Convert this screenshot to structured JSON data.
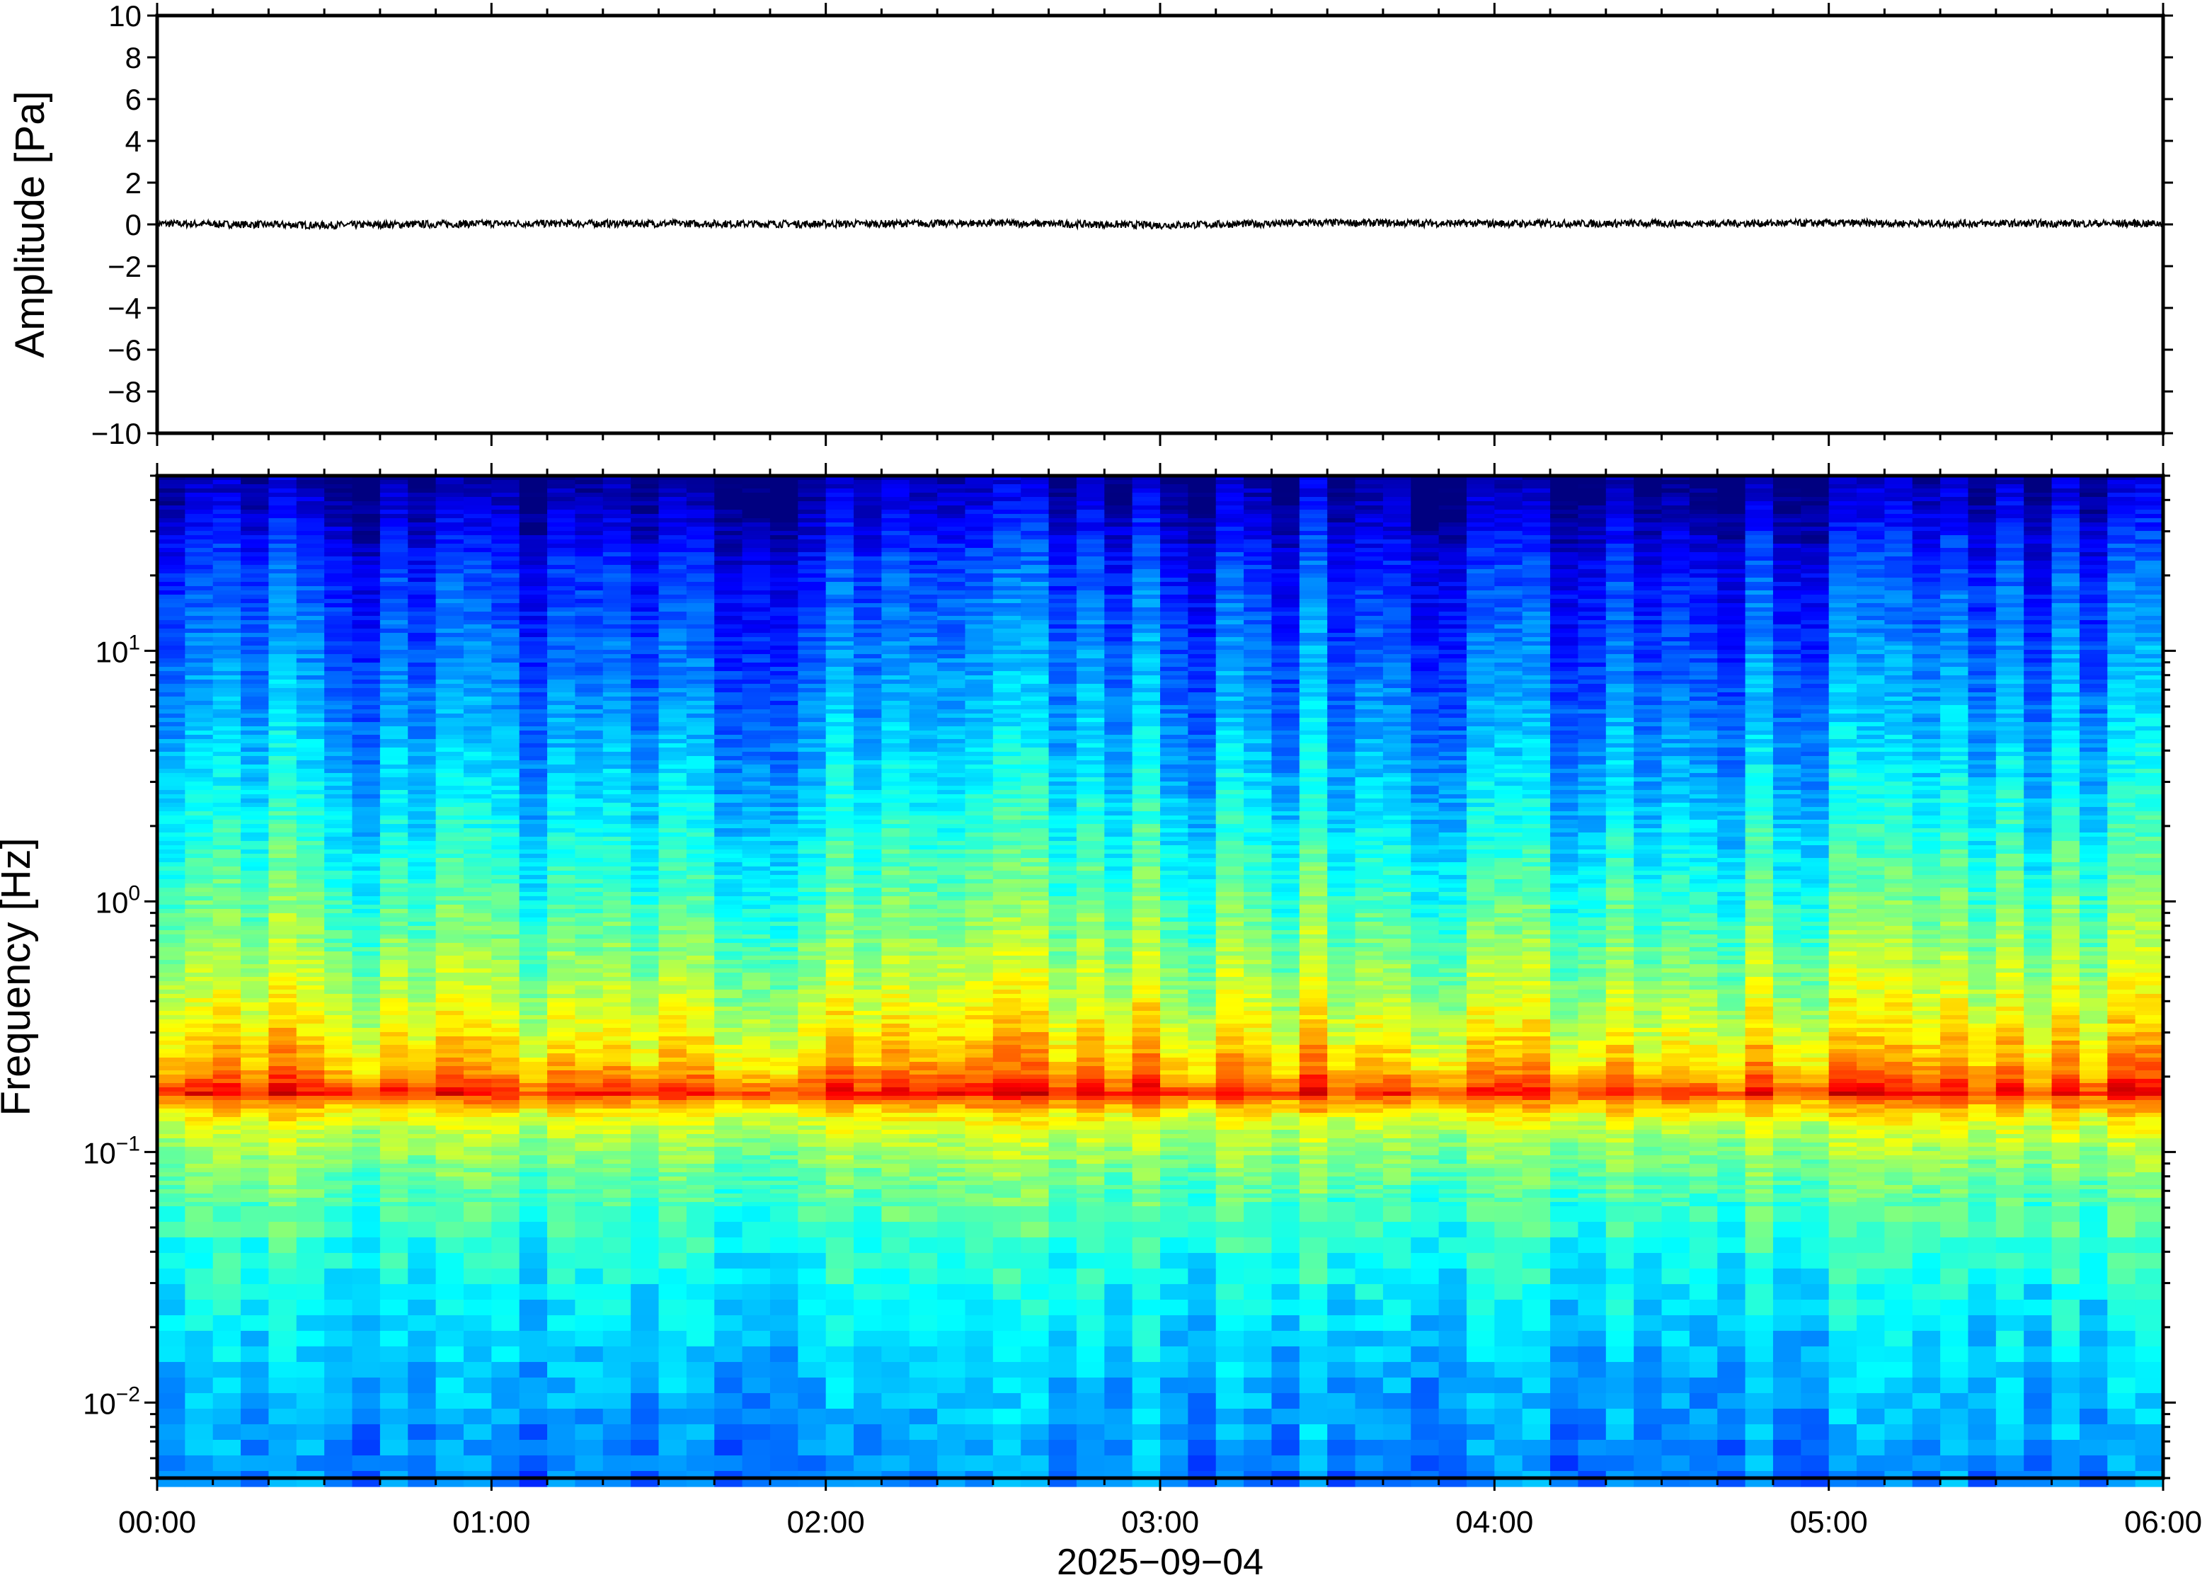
{
  "chart_data": [
    {
      "type": "line",
      "ylabel": "Amplitude [Pa]",
      "ylim": [
        -10,
        10
      ],
      "yticks": [
        10,
        8,
        6,
        4,
        2,
        0,
        -2,
        -4,
        -6,
        -8,
        -10
      ],
      "ytick_labels": [
        "10",
        "8",
        "6",
        "4",
        "2",
        "0",
        "−2",
        "−4",
        "−6",
        "−8",
        "−10"
      ],
      "xlim": [
        "00:00",
        "06:00"
      ],
      "series": [
        {
          "x_hours": [
            0,
            0.5,
            1,
            1.5,
            2,
            2.5,
            3,
            3.5,
            4,
            4.5,
            5,
            5.5,
            6
          ],
          "values": [
            0.1,
            -0.1,
            0.1,
            0.1,
            0.05,
            0.15,
            -0.1,
            0.2,
            0.1,
            0.1,
            0.15,
            0.1,
            0.1
          ]
        }
      ],
      "grid": false
    },
    {
      "type": "heatmap",
      "ylabel": "Frequency [Hz]",
      "yscale": "log",
      "ylim": [
        0.005,
        50
      ],
      "ytick_labels": [
        {
          "base": "10",
          "exp": "1",
          "value": 10
        },
        {
          "base": "10",
          "exp": "0",
          "value": 1
        },
        {
          "base": "10",
          "exp": "−1",
          "value": 0.1
        },
        {
          "base": "10",
          "exp": "−2",
          "value": 0.01
        }
      ],
      "xlim": [
        "00:00",
        "06:00"
      ],
      "xticks": [
        "00:00",
        "01:00",
        "02:00",
        "03:00",
        "04:00",
        "05:00",
        "06:00"
      ],
      "xlabel": "2025−09−04",
      "colormap": "jet",
      "dominant_band_hz": [
        0.13,
        0.22
      ],
      "peak_hz": 0.17,
      "grid": false
    }
  ]
}
